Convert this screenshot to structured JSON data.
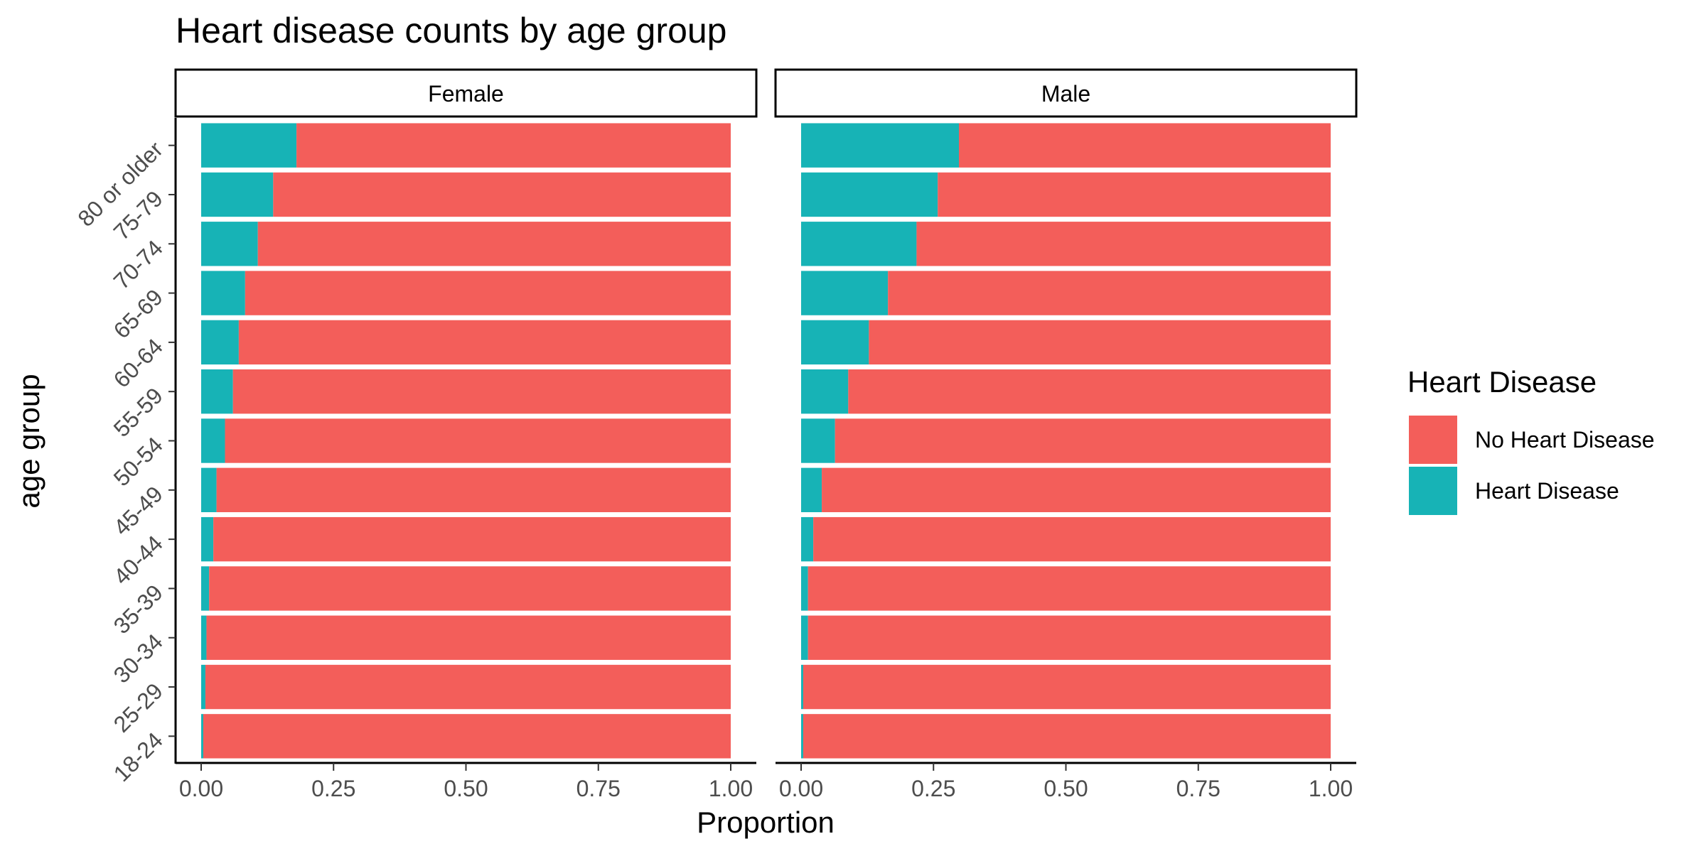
{
  "chart_data": {
    "type": "bar",
    "orientation": "horizontal",
    "stacked": true,
    "title": "Heart disease counts by age group",
    "xlabel": "Proportion",
    "ylabel": "age group",
    "xlim": [
      0,
      1
    ],
    "xticks": [
      "0.00",
      "0.25",
      "0.50",
      "0.75",
      "1.00"
    ],
    "categories": [
      "18-24",
      "25-29",
      "30-34",
      "35-39",
      "40-44",
      "45-49",
      "50-54",
      "55-59",
      "60-64",
      "65-69",
      "70-74",
      "75-79",
      "80 or older"
    ],
    "legend": {
      "title": "Heart Disease",
      "position": "right",
      "entries": [
        {
          "name": "No Heart Disease",
          "color": "#F35E5A"
        },
        {
          "name": "Heart Disease",
          "color": "#17B3B6"
        }
      ]
    },
    "panels": [
      {
        "name": "Female",
        "series": [
          {
            "name": "Heart Disease",
            "values": [
              0.004,
              0.008,
              0.01,
              0.015,
              0.023,
              0.029,
              0.045,
              0.06,
              0.071,
              0.083,
              0.107,
              0.136,
              0.18
            ]
          },
          {
            "name": "No Heart Disease",
            "values": [
              0.996,
              0.992,
              0.99,
              0.985,
              0.977,
              0.971,
              0.955,
              0.94,
              0.929,
              0.917,
              0.893,
              0.864,
              0.82
            ]
          }
        ]
      },
      {
        "name": "Male",
        "series": [
          {
            "name": "Heart Disease",
            "values": [
              0.004,
              0.004,
              0.013,
              0.013,
              0.023,
              0.039,
              0.064,
              0.089,
              0.128,
              0.164,
              0.218,
              0.258,
              0.298
            ]
          },
          {
            "name": "No Heart Disease",
            "values": [
              0.996,
              0.996,
              0.987,
              0.987,
              0.977,
              0.961,
              0.936,
              0.911,
              0.872,
              0.836,
              0.782,
              0.742,
              0.702
            ]
          }
        ]
      }
    ],
    "grid": false,
    "facet_strips": true
  }
}
